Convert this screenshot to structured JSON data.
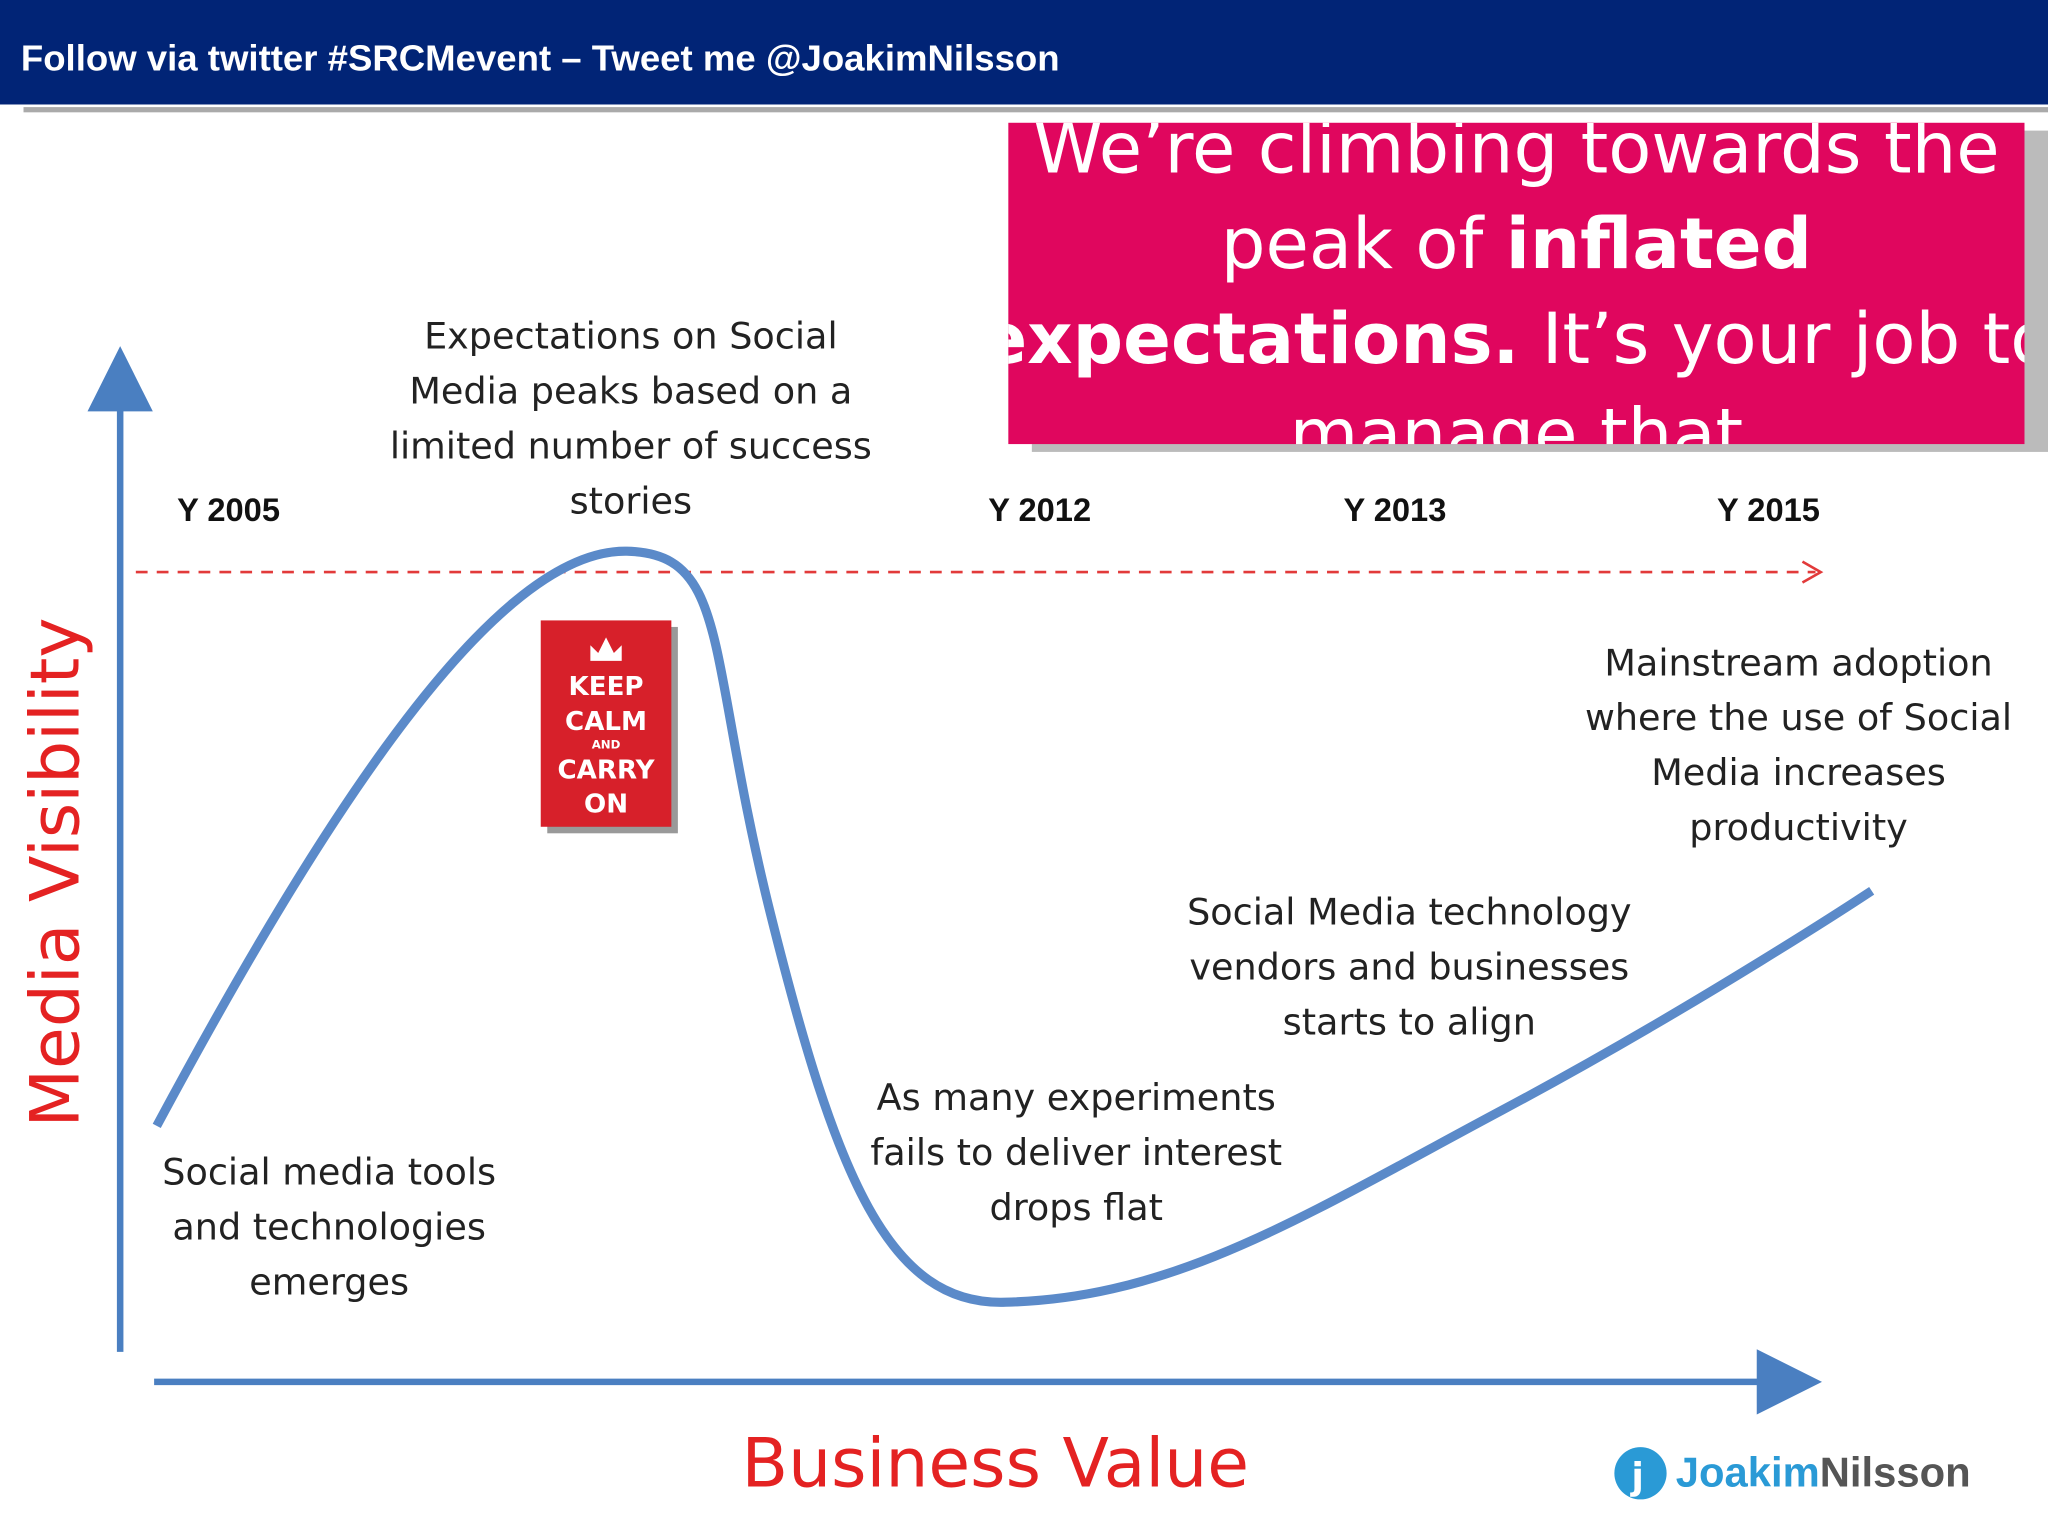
{
  "header": {
    "title": "Follow via twitter #SRCMevent – Tweet me @JoakimNilsson"
  },
  "callout": {
    "lines": [
      [
        {
          "text": "We’re climbing towards the",
          "bold": false
        }
      ],
      [
        {
          "text": "peak of ",
          "bold": false
        },
        {
          "text": "inflated",
          "bold": true
        }
      ],
      [
        {
          "text": "expectations.",
          "bold": true
        },
        {
          "text": " It’s your job to",
          "bold": false
        }
      ],
      [
        {
          "text": "manage that",
          "bold": false
        }
      ]
    ]
  },
  "years": [
    "Y 2005",
    "Y 2012",
    "Y 2013",
    "Y 2015"
  ],
  "axes": {
    "y_label": "Media Visibility",
    "x_label": "Business Value"
  },
  "annotations": {
    "peak": [
      "Expectations on Social",
      "Media peaks based on a",
      "limited number of success",
      "stories"
    ],
    "trigger": [
      "Social media tools",
      "and technologies",
      "emerges"
    ],
    "trough": [
      "As many experiments",
      "fails to deliver interest",
      "drops flat"
    ],
    "slope": [
      "Social Media technology",
      "vendors and businesses",
      "starts to align"
    ],
    "plateau": [
      "Mainstream adoption",
      "where the use of Social",
      "Media increases",
      "productivity"
    ]
  },
  "poster": {
    "lines": [
      "KEEP",
      "CALM",
      "AND",
      "CARRY",
      "ON"
    ]
  },
  "logo": {
    "first": "Joakim",
    "last": "Nilsson"
  }
}
